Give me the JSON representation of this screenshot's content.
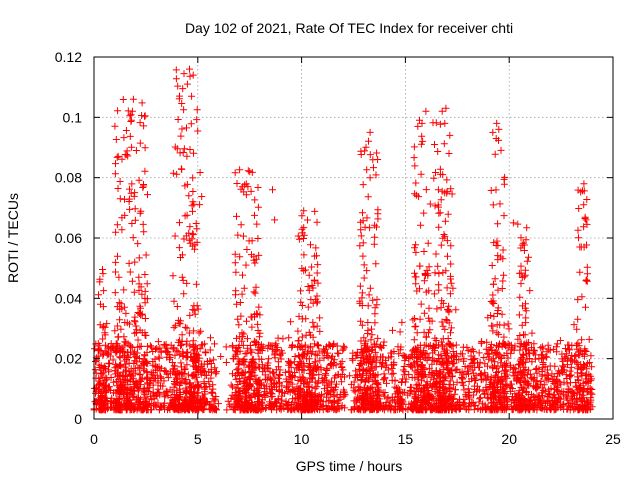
{
  "chart_data": {
    "type": "scatter",
    "title": "Day 102 of 2021, Rate Of TEC Index for receiver chti",
    "xlabel": "GPS time / hours",
    "ylabel": "ROTI / TECUs",
    "xlim": [
      0,
      25
    ],
    "ylim": [
      0,
      0.12
    ],
    "xticks": [
      0,
      5,
      10,
      15,
      20,
      25
    ],
    "xtick_labels": [
      "0",
      "5",
      "10",
      "15",
      "20",
      "25"
    ],
    "yticks": [
      0,
      0.02,
      0.04,
      0.06,
      0.08,
      0.1,
      0.12
    ],
    "ytick_labels": [
      "0",
      "0.02",
      "0.04",
      "0.06",
      "0.08",
      "0.1",
      "0.12"
    ],
    "grid": true,
    "marker": "plus",
    "marker_color": "#ff0000",
    "x_range": [
      0.0,
      24.0
    ],
    "baseline_range": [
      0.003,
      0.025
    ],
    "activity_bursts": [
      {
        "x_start": 0.2,
        "x_end": 0.6,
        "peak": 0.052
      },
      {
        "x_start": 1.0,
        "x_end": 2.6,
        "peak": 0.106
      },
      {
        "x_start": 3.8,
        "x_end": 5.2,
        "peak": 0.116
      },
      {
        "x_start": 6.8,
        "x_end": 8.0,
        "peak": 0.083
      },
      {
        "x_start": 9.8,
        "x_end": 10.8,
        "peak": 0.069
      },
      {
        "x_start": 12.8,
        "x_end": 13.7,
        "peak": 0.095
      },
      {
        "x_start": 15.4,
        "x_end": 17.3,
        "peak": 0.103
      },
      {
        "x_start": 19.1,
        "x_end": 19.8,
        "peak": 0.098
      },
      {
        "x_start": 20.4,
        "x_end": 21.0,
        "peak": 0.065
      },
      {
        "x_start": 23.3,
        "x_end": 23.8,
        "peak": 0.078
      }
    ],
    "notable_points": [
      {
        "x": 4.6,
        "y": 0.116
      },
      {
        "x": 4.5,
        "y": 0.111
      },
      {
        "x": 4.7,
        "y": 0.107
      },
      {
        "x": 1.9,
        "y": 0.106
      },
      {
        "x": 1.85,
        "y": 0.102
      },
      {
        "x": 1.8,
        "y": 0.099
      },
      {
        "x": 16.95,
        "y": 0.103
      },
      {
        "x": 16.9,
        "y": 0.098
      },
      {
        "x": 15.8,
        "y": 0.098
      },
      {
        "x": 19.4,
        "y": 0.098
      },
      {
        "x": 19.5,
        "y": 0.096
      },
      {
        "x": 13.3,
        "y": 0.095
      },
      {
        "x": 16.4,
        "y": 0.091
      },
      {
        "x": 17.1,
        "y": 0.088
      },
      {
        "x": 7.5,
        "y": 0.082
      },
      {
        "x": 13.3,
        "y": 0.08
      },
      {
        "x": 23.6,
        "y": 0.078
      },
      {
        "x": 8.6,
        "y": 0.076
      },
      {
        "x": 10.1,
        "y": 0.069
      },
      {
        "x": 8.7,
        "y": 0.066
      },
      {
        "x": 23.7,
        "y": 0.066
      },
      {
        "x": 20.2,
        "y": 0.065
      }
    ],
    "quiet_gaps": [
      [
        5.9,
        6.6
      ],
      [
        12.1,
        12.5
      ]
    ]
  }
}
